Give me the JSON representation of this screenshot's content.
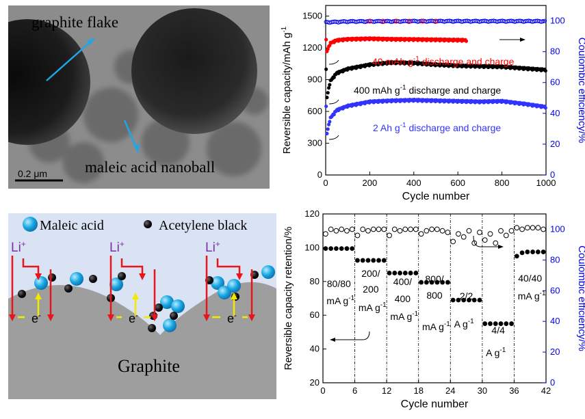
{
  "tem": {
    "label_flake": "graphite flake",
    "label_nanoball": "maleic acid nanoball",
    "scale_bar": "0.2 μm"
  },
  "schematic": {
    "legend_maleic": "Maleic acid",
    "legend_black": "Acetylene black",
    "li_label": "Li",
    "li_sup": "+",
    "e_label": "e",
    "e_sup": "-",
    "graphite_label": "Graphite",
    "colors": {
      "background": "#d9e3f4",
      "graphite": "#9e9e9e",
      "arrow_red": "#e8141b",
      "arrow_yellow": "#f5e800",
      "li_text": "#7a2fa0"
    }
  },
  "chart_data": [
    {
      "type": "scatter",
      "xlabel": "Cycle number",
      "ylabel": "Reversible capacity/mAh g",
      "ylabel_sup": "-1",
      "y2label": "Coulombic efficiency/%",
      "xlim": [
        0,
        1000
      ],
      "ylim": [
        0,
        1600
      ],
      "y2lim": [
        0,
        110
      ],
      "xticks": [
        "0",
        "200",
        "400",
        "600",
        "800",
        "1000"
      ],
      "yticks": [
        "0",
        "300",
        "600",
        "900",
        "1200",
        "1500"
      ],
      "y2ticks": [
        "0",
        "20",
        "40",
        "60",
        "80",
        "100"
      ],
      "series": [
        {
          "name": "40 mAh g-1 discharge and charge",
          "label_main": "40 mAh g",
          "label_sup": "-1",
          "label_rest": " discharge and charge",
          "color": "#ff0000",
          "x": [
            5,
            20,
            50,
            100,
            200,
            300,
            400,
            500,
            600,
            640
          ],
          "y": [
            1160,
            1240,
            1270,
            1280,
            1285,
            1280,
            1278,
            1275,
            1272,
            1270
          ]
        },
        {
          "name": "400 mAh g-1 discharge and charge",
          "label_main": "400 mAh g",
          "label_sup": "-1",
          "label_rest": " discharge and charge",
          "color": "#000000",
          "x": [
            5,
            20,
            50,
            100,
            200,
            300,
            400,
            500,
            600,
            700,
            800,
            900,
            1000
          ],
          "y": [
            720,
            880,
            960,
            1000,
            1040,
            1060,
            1055,
            1040,
            1030,
            1025,
            1020,
            1005,
            990
          ]
        },
        {
          "name": "2 Ah g-1 discharge and charge",
          "label_main": "2 Ah g",
          "label_sup": "-1",
          "label_rest": " discharge and charge",
          "color": "#3333ff",
          "x": [
            5,
            20,
            50,
            100,
            200,
            300,
            400,
            500,
            600,
            700,
            800,
            900,
            1000
          ],
          "y": [
            380,
            530,
            610,
            650,
            690,
            700,
            705,
            700,
            695,
            690,
            695,
            670,
            640
          ]
        },
        {
          "name": "Coulombic efficiency",
          "color": "#0000ee",
          "x": [
            0,
            100,
            200,
            300,
            400,
            500,
            600,
            700,
            800,
            900,
            1000
          ],
          "y": [
            99,
            99.5,
            99.6,
            99.6,
            99.7,
            99.7,
            99.7,
            99.7,
            99.7,
            99.7,
            99.7
          ]
        }
      ]
    },
    {
      "type": "scatter",
      "xlabel": "Cycle number",
      "ylabel": "Reversible capacity retention/%",
      "y2label": "Coulombic efficiency/%",
      "xlim": [
        0,
        42
      ],
      "ylim": [
        20,
        120
      ],
      "y2lim": [
        0,
        110
      ],
      "xticks": [
        "0",
        "6",
        "12",
        "18",
        "24",
        "30",
        "36",
        "42"
      ],
      "yticks": [
        "20",
        "40",
        "60",
        "80",
        "100",
        "120"
      ],
      "y2ticks": [
        "0",
        "20",
        "40",
        "60",
        "80",
        "100"
      ],
      "rate_labels": [
        {
          "l1": "80/80",
          "l2": "mA g",
          "sup": "-1"
        },
        {
          "l1": "200/",
          "l1b": "200",
          "l2": "mA g",
          "sup": "-1"
        },
        {
          "l1": "400/",
          "l1b": "400",
          "l2": "mA g",
          "sup": "-1"
        },
        {
          "l1": "800/",
          "l1b": "800",
          "l2": "mA g",
          "sup": "-1"
        },
        {
          "l1": "2/2",
          "l2": "A g",
          "sup": "-1"
        },
        {
          "l1": "4/4",
          "l2": "A g",
          "sup": "-1"
        },
        {
          "l1": "40/40",
          "l2": "mA g",
          "sup": "-1"
        }
      ],
      "capacity": [
        99.5,
        99.5,
        99.5,
        99.5,
        99.5,
        99.5,
        92.5,
        92.5,
        92.5,
        92.5,
        92.5,
        92.5,
        85,
        85,
        85,
        85,
        85,
        85,
        79.5,
        79.5,
        79.5,
        79.5,
        79.5,
        79.5,
        69,
        69,
        69,
        69,
        69,
        69,
        55,
        55,
        55,
        55,
        55,
        55,
        95,
        97,
        97.5,
        97.5,
        97.5,
        97.5
      ],
      "efficiency": [
        97,
        100,
        99,
        100,
        99,
        100,
        96,
        100,
        99,
        100,
        100,
        100,
        96,
        100,
        99,
        100,
        100,
        100,
        97,
        99,
        100,
        100,
        99,
        98,
        92,
        97,
        95,
        99,
        91,
        98,
        93,
        97,
        91,
        99,
        96,
        99,
        101,
        100,
        101,
        101,
        101,
        100
      ]
    }
  ]
}
